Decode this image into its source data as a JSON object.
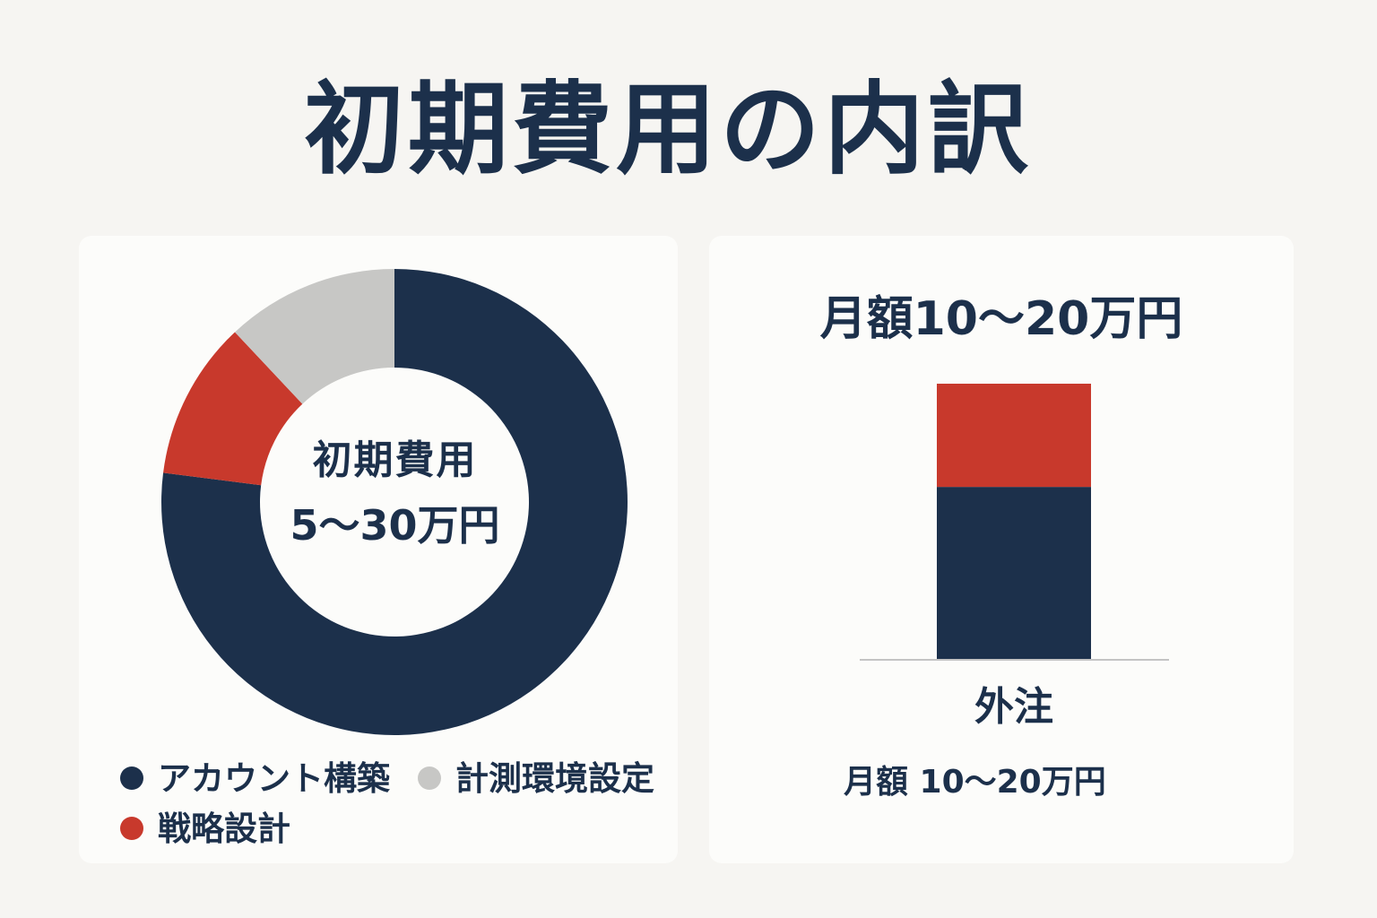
{
  "page": {
    "title": "初期費用の内訳"
  },
  "colors": {
    "navy": "#1c304b",
    "red": "#c8392c",
    "gray": "#c7c7c5"
  },
  "chart_data": [
    {
      "type": "pie",
      "title": "初期費用",
      "center_value": "5〜30万円",
      "donut": true,
      "legend_position": "bottom",
      "slices": [
        {
          "label": "アカウント構築",
          "value": 77,
          "color": "#1c304b"
        },
        {
          "label": "戦略設計",
          "value": 11,
          "color": "#c8392c"
        },
        {
          "label": "計測環境設定",
          "value": 12,
          "color": "#c7c7c5"
        }
      ]
    },
    {
      "type": "bar",
      "stacked": true,
      "title": "月額10〜20万円",
      "categories": [
        "外注"
      ],
      "series": [
        {
          "values": [
            62.5
          ],
          "color": "#1c304b"
        },
        {
          "values": [
            37.5
          ],
          "color": "#c8392c"
        }
      ],
      "ylim": [
        0,
        100
      ],
      "note": "月額 10〜20万円"
    }
  ]
}
